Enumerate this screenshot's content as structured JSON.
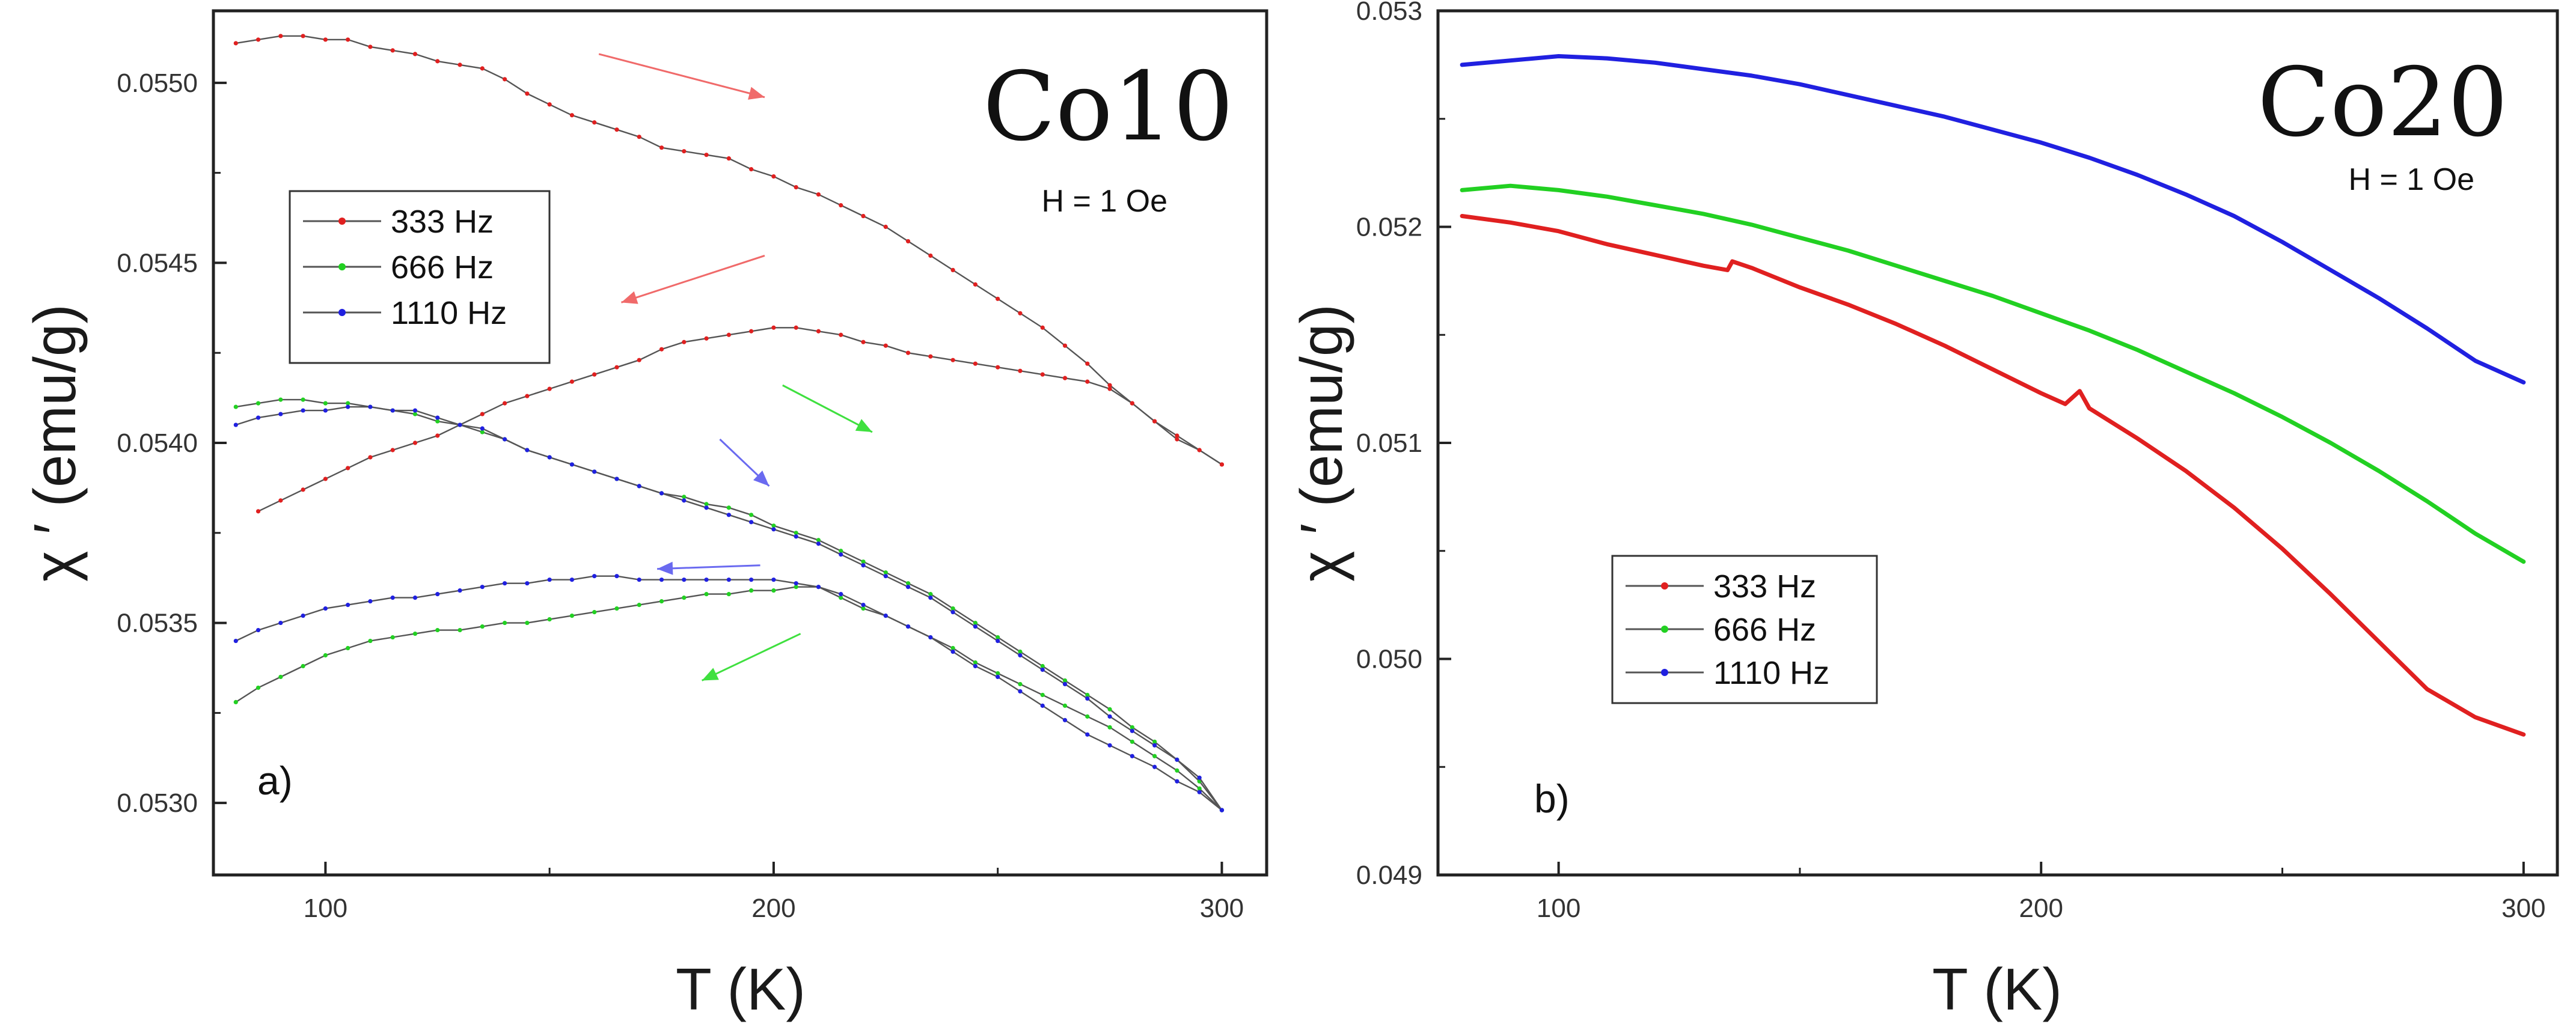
{
  "chart_data": [
    {
      "type": "line",
      "panel_label": "a)",
      "sample_label": "Co10",
      "field_label": "H = 1 Oe",
      "xlabel": "T  (K)",
      "ylabel": "χ ′  (emu/g)",
      "xlim": [
        75,
        310
      ],
      "ylim": [
        0.0528,
        0.0552
      ],
      "xticks": [
        100,
        200,
        300
      ],
      "xtick_labels": [
        "100",
        "200",
        "300"
      ],
      "yticks": [
        0.053,
        0.0535,
        0.054,
        0.0545,
        0.055
      ],
      "ytick_labels": [
        "0.0530",
        "0.0535",
        "0.0540",
        "0.0545",
        "0.0550"
      ],
      "legend": {
        "position": "upper-left",
        "entries": [
          {
            "label": "333   Hz",
            "color": "#e02020"
          },
          {
            "label": "666   Hz",
            "color": "#22d022"
          },
          {
            "label": "1110 Hz",
            "color": "#2020e0"
          }
        ]
      },
      "arrows": [
        {
          "color": "#f06a6a",
          "from": [
            161,
            0.05508
          ],
          "to": [
            198,
            0.05496
          ]
        },
        {
          "color": "#f06a6a",
          "from": [
            198,
            0.05452
          ],
          "to": [
            166,
            0.05439
          ]
        },
        {
          "color": "#3fe03f",
          "from": [
            202,
            0.05416
          ],
          "to": [
            222,
            0.05403
          ]
        },
        {
          "color": "#6a6af0",
          "from": [
            188,
            0.05401
          ],
          "to": [
            199,
            0.05388
          ]
        },
        {
          "color": "#6a6af0",
          "from": [
            197,
            0.05366
          ],
          "to": [
            174,
            0.05365
          ]
        },
        {
          "color": "#3fe03f",
          "from": [
            206,
            0.05347
          ],
          "to": [
            184,
            0.05334
          ]
        }
      ],
      "series": [
        {
          "name": "333 Hz warming",
          "color": "#e02020",
          "x": [
            80,
            85,
            90,
            95,
            100,
            105,
            110,
            115,
            120,
            125,
            130,
            135,
            140,
            145,
            150,
            155,
            160,
            165,
            170,
            175,
            180,
            185,
            190,
            195,
            200,
            205,
            210,
            215,
            220,
            225,
            230,
            235,
            240,
            245,
            250,
            255,
            260,
            265,
            270,
            275,
            280,
            285,
            290,
            295,
            300
          ],
          "y": [
            0.05511,
            0.05512,
            0.05513,
            0.05513,
            0.05512,
            0.05512,
            0.0551,
            0.05509,
            0.05508,
            0.05506,
            0.05505,
            0.05504,
            0.05501,
            0.05497,
            0.05494,
            0.05491,
            0.05489,
            0.05487,
            0.05485,
            0.05482,
            0.05481,
            0.0548,
            0.05479,
            0.05476,
            0.05474,
            0.05471,
            0.05469,
            0.05466,
            0.05463,
            0.0546,
            0.05456,
            0.05452,
            0.05448,
            0.05444,
            0.0544,
            0.05436,
            0.05432,
            0.05427,
            0.05422,
            0.05416,
            0.05411,
            0.05406,
            0.05401,
            0.05398,
            0.05394
          ]
        },
        {
          "name": "333 Hz cooling",
          "color": "#e02020",
          "x": [
            85,
            90,
            95,
            100,
            105,
            110,
            115,
            120,
            125,
            130,
            135,
            140,
            145,
            150,
            155,
            160,
            165,
            170,
            175,
            180,
            185,
            190,
            195,
            200,
            205,
            210,
            215,
            220,
            225,
            230,
            235,
            240,
            245,
            250,
            255,
            260,
            265,
            270,
            275,
            280,
            285,
            290,
            295,
            300
          ],
          "y": [
            0.05381,
            0.05384,
            0.05387,
            0.0539,
            0.05393,
            0.05396,
            0.05398,
            0.054,
            0.05402,
            0.05405,
            0.05408,
            0.05411,
            0.05413,
            0.05415,
            0.05417,
            0.05419,
            0.05421,
            0.05423,
            0.05426,
            0.05428,
            0.05429,
            0.0543,
            0.05431,
            0.05432,
            0.05432,
            0.05431,
            0.0543,
            0.05428,
            0.05427,
            0.05425,
            0.05424,
            0.05423,
            0.05422,
            0.05421,
            0.0542,
            0.05419,
            0.05418,
            0.05417,
            0.05415,
            0.05411,
            0.05406,
            0.05402,
            0.05398,
            0.05394
          ]
        },
        {
          "name": "666 Hz warming",
          "color": "#22d022",
          "x": [
            80,
            85,
            90,
            95,
            100,
            105,
            110,
            115,
            120,
            125,
            130,
            135,
            140,
            145,
            150,
            155,
            160,
            165,
            170,
            175,
            180,
            185,
            190,
            195,
            200,
            205,
            210,
            215,
            220,
            225,
            230,
            235,
            240,
            245,
            250,
            255,
            260,
            265,
            270,
            275,
            280,
            285,
            290,
            295,
            300
          ],
          "y": [
            0.0541,
            0.05411,
            0.05412,
            0.05412,
            0.05411,
            0.05411,
            0.0541,
            0.05409,
            0.05408,
            0.05406,
            0.05405,
            0.05403,
            0.05401,
            0.05398,
            0.05396,
            0.05394,
            0.05392,
            0.0539,
            0.05388,
            0.05386,
            0.05385,
            0.05383,
            0.05382,
            0.0538,
            0.05377,
            0.05375,
            0.05373,
            0.0537,
            0.05367,
            0.05364,
            0.05361,
            0.05358,
            0.05354,
            0.0535,
            0.05346,
            0.05342,
            0.05338,
            0.05334,
            0.0533,
            0.05326,
            0.05321,
            0.05317,
            0.05312,
            0.05306,
            0.05298
          ]
        },
        {
          "name": "666 Hz cooling",
          "color": "#22d022",
          "x": [
            80,
            85,
            90,
            95,
            100,
            105,
            110,
            115,
            120,
            125,
            130,
            135,
            140,
            145,
            150,
            155,
            160,
            165,
            170,
            175,
            180,
            185,
            190,
            195,
            200,
            205,
            210,
            215,
            220,
            225,
            230,
            235,
            240,
            245,
            250,
            255,
            260,
            265,
            270,
            275,
            280,
            285,
            290,
            295,
            300
          ],
          "y": [
            0.05328,
            0.05332,
            0.05335,
            0.05338,
            0.05341,
            0.05343,
            0.05345,
            0.05346,
            0.05347,
            0.05348,
            0.05348,
            0.05349,
            0.0535,
            0.0535,
            0.05351,
            0.05352,
            0.05353,
            0.05354,
            0.05355,
            0.05356,
            0.05357,
            0.05358,
            0.05358,
            0.05359,
            0.05359,
            0.0536,
            0.0536,
            0.05357,
            0.05354,
            0.05352,
            0.05349,
            0.05346,
            0.05343,
            0.05339,
            0.05336,
            0.05333,
            0.0533,
            0.05327,
            0.05324,
            0.05321,
            0.05317,
            0.05313,
            0.05309,
            0.05304,
            0.05298
          ]
        },
        {
          "name": "1110 Hz warming",
          "color": "#2020e0",
          "x": [
            80,
            85,
            90,
            95,
            100,
            105,
            110,
            115,
            120,
            125,
            130,
            135,
            140,
            145,
            150,
            155,
            160,
            165,
            170,
            175,
            180,
            185,
            190,
            195,
            200,
            205,
            210,
            215,
            220,
            225,
            230,
            235,
            240,
            245,
            250,
            255,
            260,
            265,
            270,
            275,
            280,
            285,
            290,
            295,
            300
          ],
          "y": [
            0.05405,
            0.05407,
            0.05408,
            0.05409,
            0.05409,
            0.0541,
            0.0541,
            0.05409,
            0.05409,
            0.05407,
            0.05405,
            0.05404,
            0.05401,
            0.05398,
            0.05396,
            0.05394,
            0.05392,
            0.0539,
            0.05388,
            0.05386,
            0.05384,
            0.05382,
            0.0538,
            0.05378,
            0.05376,
            0.05374,
            0.05372,
            0.05369,
            0.05366,
            0.05363,
            0.0536,
            0.05357,
            0.05353,
            0.05349,
            0.05345,
            0.05341,
            0.05337,
            0.05333,
            0.05329,
            0.05324,
            0.0532,
            0.05316,
            0.05312,
            0.05307,
            0.05298
          ]
        },
        {
          "name": "1110 Hz cooling",
          "color": "#2020e0",
          "x": [
            80,
            85,
            90,
            95,
            100,
            105,
            110,
            115,
            120,
            125,
            130,
            135,
            140,
            145,
            150,
            155,
            160,
            165,
            170,
            175,
            180,
            185,
            190,
            195,
            200,
            205,
            210,
            215,
            220,
            225,
            230,
            235,
            240,
            245,
            250,
            255,
            260,
            265,
            270,
            275,
            280,
            285,
            290,
            295,
            300
          ],
          "y": [
            0.05345,
            0.05348,
            0.0535,
            0.05352,
            0.05354,
            0.05355,
            0.05356,
            0.05357,
            0.05357,
            0.05358,
            0.05359,
            0.0536,
            0.05361,
            0.05361,
            0.05362,
            0.05362,
            0.05363,
            0.05363,
            0.05362,
            0.05362,
            0.05362,
            0.05362,
            0.05362,
            0.05362,
            0.05362,
            0.05361,
            0.0536,
            0.05358,
            0.05355,
            0.05352,
            0.05349,
            0.05346,
            0.05342,
            0.05338,
            0.05335,
            0.05331,
            0.05327,
            0.05323,
            0.05319,
            0.05316,
            0.05313,
            0.0531,
            0.05306,
            0.05303,
            0.05298
          ]
        }
      ]
    },
    {
      "type": "line",
      "panel_label": "b)",
      "sample_label": "Co20",
      "field_label": "H = 1 Oe",
      "xlabel": "T  (K)",
      "ylabel": "χ ′  (emu/g)",
      "xlim": [
        75,
        307
      ],
      "ylim": [
        0.049,
        0.053
      ],
      "xticks": [
        100,
        200,
        300
      ],
      "xtick_labels": [
        "100",
        "200",
        "300"
      ],
      "yticks": [
        0.049,
        0.05,
        0.051,
        0.052,
        0.053
      ],
      "ytick_labels": [
        "0.049",
        "0.050",
        "0.051",
        "0.052",
        "0.053"
      ],
      "legend": {
        "position": "lower-left",
        "entries": [
          {
            "label": "333   Hz",
            "color": "#e02020"
          },
          {
            "label": "666   Hz",
            "color": "#22d022"
          },
          {
            "label": "1110 Hz",
            "color": "#2020e0"
          }
        ]
      },
      "series": [
        {
          "name": "333 Hz",
          "color": "#e02020",
          "x": [
            80,
            90,
            100,
            110,
            120,
            130,
            135,
            136,
            140,
            150,
            160,
            170,
            180,
            190,
            200,
            205,
            208,
            210,
            220,
            230,
            240,
            250,
            260,
            270,
            280,
            290,
            300
          ],
          "y": [
            0.05205,
            0.05202,
            0.05198,
            0.05192,
            0.05187,
            0.05182,
            0.0518,
            0.05184,
            0.05181,
            0.05172,
            0.05164,
            0.05155,
            0.05145,
            0.05134,
            0.05123,
            0.05118,
            0.05124,
            0.05116,
            0.05102,
            0.05087,
            0.0507,
            0.05051,
            0.0503,
            0.05008,
            0.04986,
            0.04973,
            0.04965
          ]
        },
        {
          "name": "666 Hz",
          "color": "#22d022",
          "x": [
            80,
            90,
            100,
            110,
            120,
            130,
            140,
            150,
            160,
            170,
            180,
            190,
            200,
            210,
            220,
            230,
            240,
            250,
            260,
            270,
            280,
            290,
            300
          ],
          "y": [
            0.05217,
            0.05219,
            0.05217,
            0.05214,
            0.0521,
            0.05206,
            0.05201,
            0.05195,
            0.05189,
            0.05182,
            0.05175,
            0.05168,
            0.0516,
            0.05152,
            0.05143,
            0.05133,
            0.05123,
            0.05112,
            0.051,
            0.05087,
            0.05073,
            0.05058,
            0.05045
          ]
        },
        {
          "name": "1110 Hz",
          "color": "#2020e0",
          "x": [
            80,
            90,
            100,
            110,
            120,
            130,
            140,
            150,
            160,
            170,
            180,
            190,
            200,
            210,
            220,
            230,
            240,
            250,
            260,
            270,
            280,
            290,
            300
          ],
          "y": [
            0.05275,
            0.05277,
            0.05279,
            0.05278,
            0.05276,
            0.05273,
            0.0527,
            0.05266,
            0.05261,
            0.05256,
            0.05251,
            0.05245,
            0.05239,
            0.05232,
            0.05224,
            0.05215,
            0.05205,
            0.05193,
            0.0518,
            0.05167,
            0.05153,
            0.05138,
            0.05128
          ]
        }
      ]
    }
  ]
}
